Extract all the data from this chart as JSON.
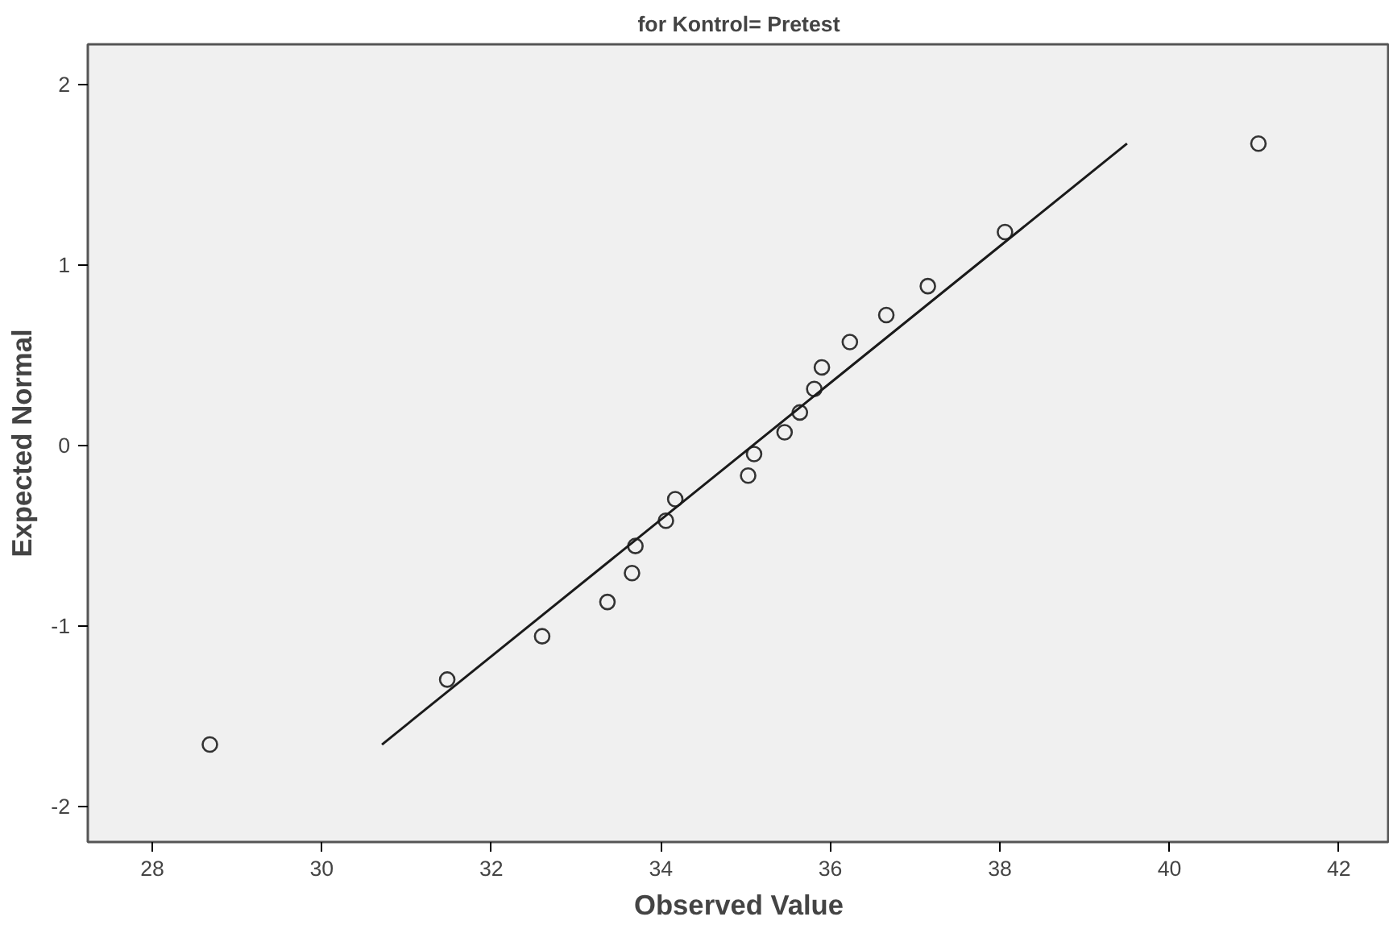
{
  "chart_data": {
    "type": "scatter",
    "title": "for Kontrol= Pretest",
    "xlabel": "Observed Value",
    "ylabel": "Expected Normal",
    "series": [
      {
        "color": "#333333",
        "x": [
          28.68,
          31.48,
          32.6,
          33.37,
          33.66,
          33.7,
          34.06,
          34.17,
          35.03,
          35.1,
          35.46,
          35.64,
          35.81,
          35.9,
          36.23,
          36.66,
          37.15,
          38.06,
          41.05
        ],
        "values": [
          -1.66,
          -1.3,
          -1.06,
          -0.87,
          -0.71,
          -0.56,
          -0.42,
          -0.3,
          -0.17,
          -0.05,
          0.07,
          0.18,
          0.31,
          0.43,
          0.57,
          0.72,
          0.88,
          1.18,
          1.67
        ]
      },
      {
        "type": "line",
        "marker": "none",
        "color": "#1a1a1a",
        "x": [
          30.71,
          39.5
        ],
        "values": [
          -1.66,
          1.67
        ]
      }
    ],
    "xlim": [
      27.24,
      42.6
    ],
    "ylim": [
      -2.2,
      2.22
    ],
    "xticks": [
      28,
      30,
      32,
      34,
      36,
      38,
      40,
      42
    ],
    "yticks": [
      {
        "value": -2,
        "label": "-2"
      },
      {
        "value": -1,
        "label": "-1"
      },
      0,
      1,
      2
    ],
    "grid": false,
    "marker": "circle",
    "line_style": "solid"
  }
}
